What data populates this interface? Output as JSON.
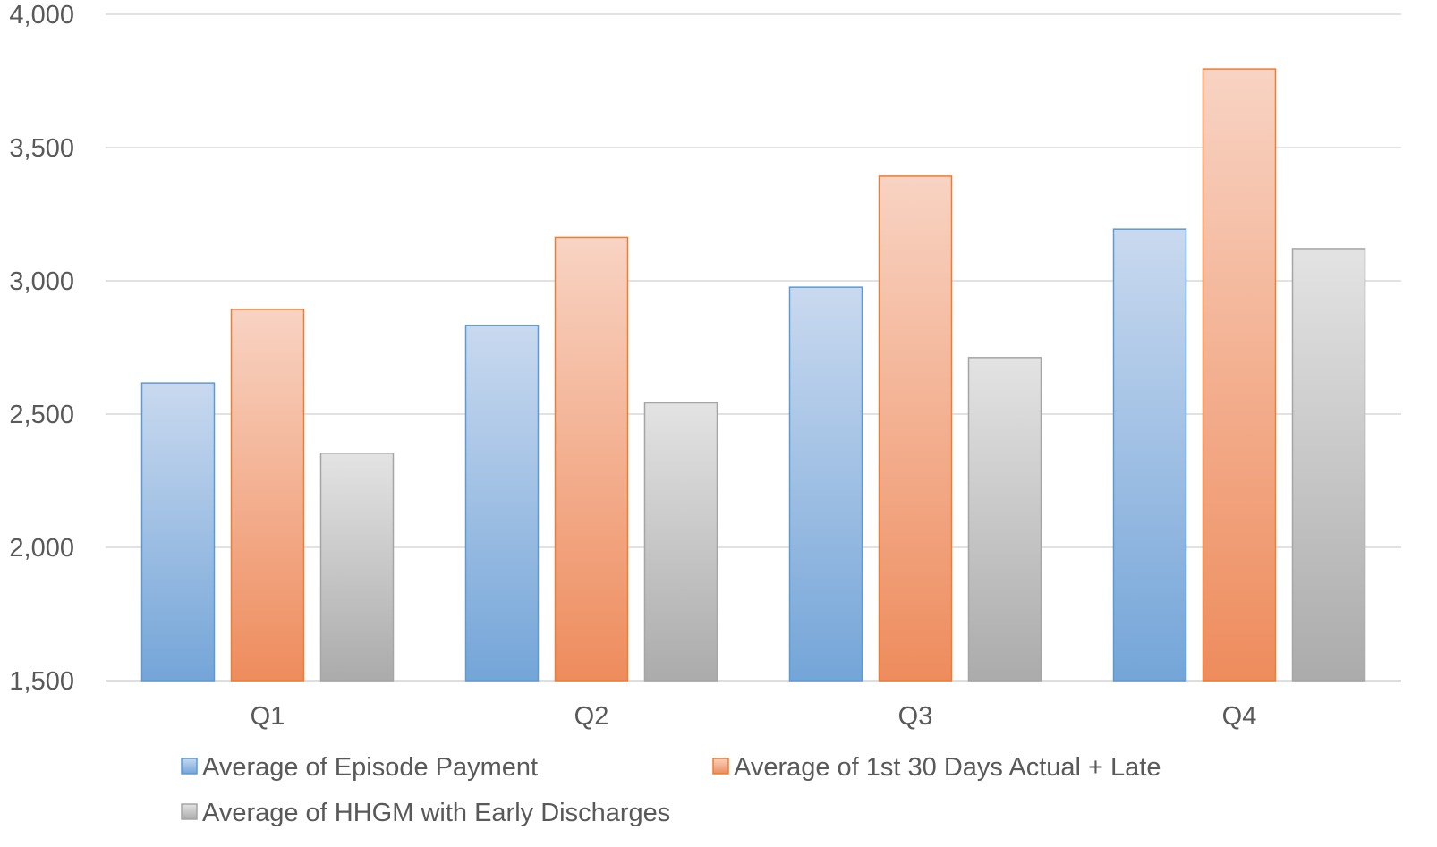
{
  "chart_data": {
    "type": "bar",
    "title": "",
    "xlabel": "",
    "ylabel": "",
    "categories": [
      "Q1",
      "Q2",
      "Q3",
      "Q4"
    ],
    "series": [
      {
        "name": "Average of Episode Payment",
        "values": [
          2617,
          2833,
          2976,
          3194
        ],
        "color_light": "#c9d9ef",
        "color_dark": "#74a5d8",
        "stroke": "#5b9bd5"
      },
      {
        "name": "Average of 1st 30 Days Actual + Late",
        "values": [
          2893,
          3163,
          3393,
          3795
        ],
        "color_light": "#f8d3c3",
        "color_dark": "#ee8c5d",
        "stroke": "#ed7d31"
      },
      {
        "name": "Average of HHGM with Early Discharges",
        "values": [
          2353,
          2542,
          2712,
          3121
        ],
        "color_light": "#e3e3e3",
        "color_dark": "#ababab",
        "stroke": "#a5a5a5"
      }
    ],
    "ylim": [
      1500,
      4000
    ],
    "yticks": [
      1500,
      2000,
      2500,
      3000,
      3500,
      4000
    ],
    "ytick_labels": [
      "1,500",
      "2,000",
      "2,500",
      "3,000",
      "3,500",
      "4,000"
    ],
    "grid": true,
    "legend_position": "bottom",
    "colors": {
      "grid": "#d9d9d9",
      "text": "#595959"
    }
  }
}
